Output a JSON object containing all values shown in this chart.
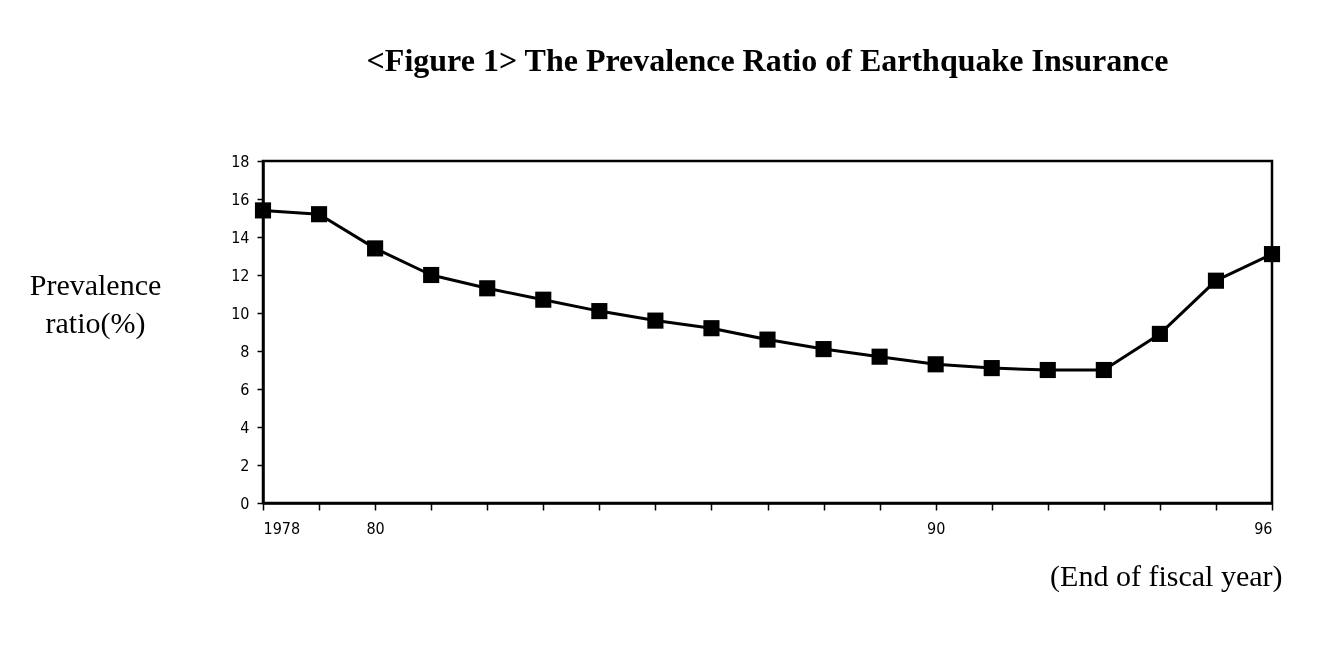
{
  "chart_data": {
    "type": "line",
    "title": "<Figure 1> The Prevalence Ratio of Earthquake Insurance",
    "xlabel": "(End of fiscal year)",
    "ylabel": "Prevalence ratio(%)",
    "x": [
      1978,
      1979,
      1980,
      1981,
      1982,
      1983,
      1984,
      1985,
      1986,
      1987,
      1988,
      1989,
      1990,
      1991,
      1992,
      1993,
      1994,
      1995,
      1996
    ],
    "series": [
      {
        "color": "#000000",
        "values": [
          15.4,
          15.2,
          13.4,
          12.0,
          11.3,
          10.7,
          10.1,
          9.6,
          9.2,
          8.6,
          8.1,
          7.7,
          7.3,
          7.1,
          7.0,
          7.0,
          8.9,
          11.7,
          13.1
        ]
      }
    ],
    "xlim": [
      1978,
      1996
    ],
    "xticks": [
      1978,
      {
        "value": 1979,
        "label": null
      },
      {
        "value": 1980,
        "label": "80"
      },
      {
        "value": 1981,
        "label": null
      },
      {
        "value": 1982,
        "label": null
      },
      {
        "value": 1983,
        "label": null
      },
      {
        "value": 1984,
        "label": null
      },
      {
        "value": 1985,
        "label": null
      },
      {
        "value": 1986,
        "label": null
      },
      {
        "value": 1987,
        "label": null
      },
      {
        "value": 1988,
        "label": null
      },
      {
        "value": 1989,
        "label": null
      },
      {
        "value": 1990,
        "label": "90"
      },
      {
        "value": 1991,
        "label": null
      },
      {
        "value": 1992,
        "label": null
      },
      {
        "value": 1993,
        "label": null
      },
      {
        "value": 1994,
        "label": null
      },
      {
        "value": 1995,
        "label": null
      },
      {
        "value": 1996,
        "label": "96"
      }
    ],
    "ylim": [
      0,
      18
    ],
    "yticks": [
      0,
      2,
      4,
      6,
      8,
      10,
      12,
      14,
      16,
      18
    ],
    "grid": false,
    "marker": "square",
    "line_style": "solid"
  }
}
